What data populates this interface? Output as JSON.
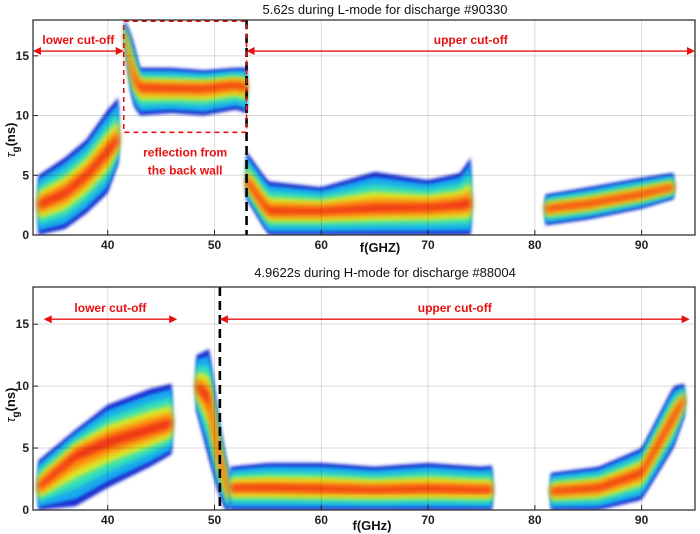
{
  "chart_data": [
    {
      "type": "heatmap",
      "title": "5.62s during L-mode for discharge #90330",
      "xlabel": "f(GHZ)",
      "ylabel_symbol": "τ",
      "ylabel_sub": "g",
      "ylabel_unit": "(ns)",
      "xlim": [
        33,
        95
      ],
      "ylim": [
        0,
        18
      ],
      "xticks": [
        40,
        50,
        60,
        70,
        80,
        90
      ],
      "yticks": [
        0,
        5,
        10,
        15
      ],
      "grid": true,
      "divider_x": 53,
      "annotations": {
        "lower": {
          "text": "lower cut-off",
          "x_from": 33,
          "x_to": 41.5,
          "y": 15.4
        },
        "upper": {
          "text": "upper cut-off",
          "x_from": 53,
          "x_to": 95,
          "y": 15.4
        },
        "reflection_line1": "reflection from",
        "reflection_line2": "the back wall",
        "box": {
          "x0": 41.5,
          "x1": 53,
          "y0": 8.6,
          "y1": 17.9
        }
      },
      "bands": [
        {
          "x": [
            33.5,
            36,
            38,
            40,
            41
          ],
          "y_low": [
            0,
            0.5,
            1.8,
            3.5,
            6
          ],
          "y_high": [
            5,
            6.5,
            8,
            10.5,
            11.5
          ],
          "y_core": [
            2.5,
            3.5,
            5,
            7,
            8
          ]
        },
        {
          "x": [
            41.6,
            42.3,
            43,
            46,
            49,
            52,
            53
          ],
          "y_low": [
            16,
            11,
            10,
            10.2,
            10,
            10.5,
            10.2
          ],
          "y_high": [
            18,
            16.5,
            14,
            14,
            13.8,
            14,
            14
          ],
          "y_core": [
            17,
            13.5,
            12.4,
            12.3,
            12.3,
            12.6,
            12.4
          ]
        },
        {
          "x": [
            53,
            55,
            60,
            65,
            70,
            73,
            74
          ],
          "y_low": [
            3,
            0,
            0,
            0,
            0,
            0,
            0
          ],
          "y_high": [
            7,
            4.5,
            4,
            5.3,
            4.6,
            5.2,
            6.5
          ],
          "y_core": [
            4.5,
            2,
            2,
            2.2,
            2.3,
            2.5,
            2.6
          ]
        },
        {
          "x": [
            81,
            85,
            90,
            93
          ],
          "y_low": [
            0.8,
            1.3,
            2.2,
            3
          ],
          "y_high": [
            3.4,
            4,
            4.8,
            5.2
          ],
          "y_core": [
            2.2,
            2.6,
            3.4,
            4
          ]
        }
      ]
    },
    {
      "type": "heatmap",
      "title": "4.9622s during H-mode for discharge #88004",
      "xlabel": "f(GHz)",
      "ylabel_symbol": "τ",
      "ylabel_sub": "g",
      "ylabel_unit": "(ns)",
      "xlim": [
        33,
        95
      ],
      "ylim": [
        0,
        18
      ],
      "xticks": [
        40,
        50,
        60,
        70,
        80,
        90
      ],
      "yticks": [
        0,
        5,
        10,
        15
      ],
      "grid": true,
      "divider_x": 50.5,
      "annotations": {
        "lower": {
          "text": "lower cut-off",
          "x_from": 34,
          "x_to": 46.5,
          "y": 15.4
        },
        "upper": {
          "text": "upper cut-off",
          "x_from": 50.5,
          "x_to": 94.5,
          "y": 15.4
        }
      },
      "bands": [
        {
          "x": [
            33.5,
            37,
            40,
            44,
            46
          ],
          "y_low": [
            0,
            0.3,
            1.8,
            3.5,
            4.5
          ],
          "y_high": [
            4,
            6.5,
            8.5,
            9.8,
            10.2
          ],
          "y_core": [
            1.8,
            4.5,
            5.5,
            6.5,
            7
          ]
        },
        {
          "x": [
            48.3,
            49.5,
            50.3,
            51,
            51.5
          ],
          "y_low": [
            8,
            4,
            1.5,
            0,
            0
          ],
          "y_high": [
            12.5,
            13,
            8,
            4.5,
            2.5
          ],
          "y_core": [
            10,
            9,
            4.8,
            2.5,
            1
          ]
        },
        {
          "x": [
            51.5,
            55,
            60,
            65,
            70,
            75,
            76
          ],
          "y_low": [
            0,
            0,
            0,
            0,
            0,
            0,
            0
          ],
          "y_high": [
            3.5,
            3.8,
            3.8,
            3.5,
            3.8,
            3.5,
            3.6
          ],
          "y_core": [
            1.8,
            1.8,
            1.7,
            1.6,
            1.7,
            1.6,
            1.6
          ]
        },
        {
          "x": [
            81.5,
            86,
            90,
            93,
            94
          ],
          "y_low": [
            0,
            0,
            0.8,
            5,
            7.5
          ],
          "y_high": [
            3,
            3.5,
            5,
            10,
            10.2
          ],
          "y_core": [
            1.5,
            1.8,
            3,
            7.5,
            9
          ]
        }
      ]
    }
  ]
}
